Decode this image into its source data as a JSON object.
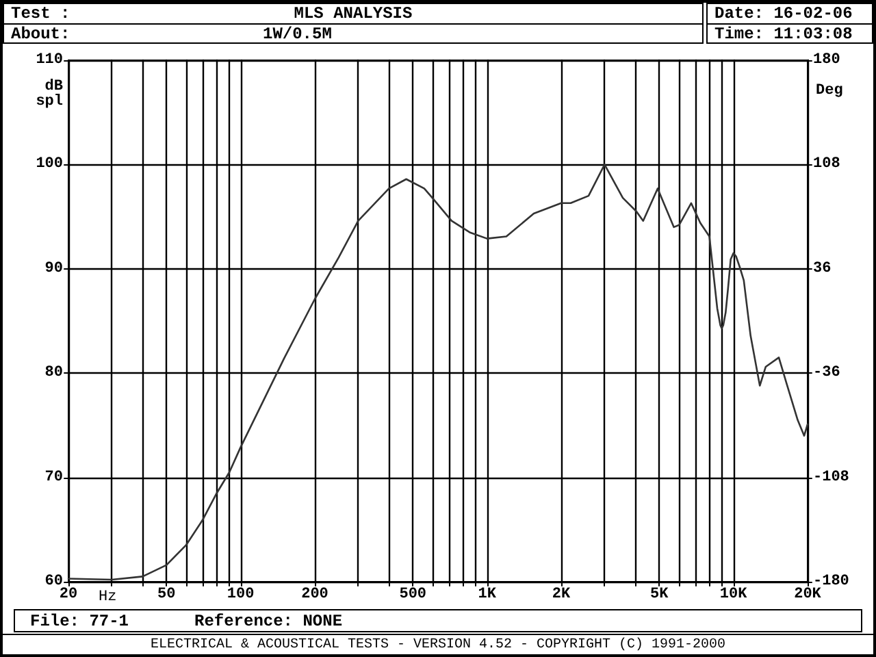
{
  "chart_data": {
    "type": "line",
    "title": "MLS ANALYSIS",
    "annotations": [
      "Test :",
      "About:",
      "1W/0.5M",
      "Date: 16-02-06",
      "Time: 11:03:08",
      "File: 77-1",
      "Reference: NONE",
      "ELECTRICAL & ACOUSTICAL TESTS - VERSION 4.52 - COPYRIGHT (C) 1991-2000"
    ],
    "xlabel": "Hz",
    "ylabel": "dB spl",
    "y2label": "Deg",
    "log": "x",
    "grid": true,
    "marker": "none",
    "line_style": "solid",
    "xlim": [
      20,
      20000
    ],
    "xticks": [
      20,
      {
        "value": 30,
        "label": null
      },
      {
        "value": 40,
        "label": null
      },
      50,
      {
        "value": 60,
        "label": null
      },
      {
        "value": 70,
        "label": null
      },
      {
        "value": 80,
        "label": null
      },
      {
        "value": 90,
        "label": null
      },
      100,
      200,
      {
        "value": 300,
        "label": null
      },
      {
        "value": 400,
        "label": null
      },
      500,
      {
        "value": 600,
        "label": null
      },
      {
        "value": 700,
        "label": null
      },
      {
        "value": 800,
        "label": null
      },
      {
        "value": 900,
        "label": null
      },
      {
        "value": 1000,
        "label": "1K"
      },
      {
        "value": 2000,
        "label": "2K"
      },
      {
        "value": 3000,
        "label": null
      },
      {
        "value": 4000,
        "label": null
      },
      {
        "value": 5000,
        "label": "5K"
      },
      {
        "value": 6000,
        "label": null
      },
      {
        "value": 7000,
        "label": null
      },
      {
        "value": 8000,
        "label": null
      },
      {
        "value": 9000,
        "label": null
      },
      {
        "value": 10000,
        "label": "10K"
      },
      {
        "value": 20000,
        "label": "20K"
      }
    ],
    "ylim": [
      60,
      110
    ],
    "yticks": [
      60,
      70,
      80,
      90,
      100,
      110
    ],
    "y2lim": [
      -180,
      180
    ],
    "y2ticks": [
      -180,
      -108,
      -36,
      36,
      108,
      180
    ],
    "series": [
      {
        "color": "#333333",
        "x": [
          20,
          30,
          40,
          50,
          60,
          70,
          80,
          90,
          100,
          150,
          200,
          250,
          300,
          400,
          470,
          556,
          600,
          718,
          850,
          1000,
          1198,
          1548,
          2000,
          2185,
          2583,
          3000,
          3557,
          4040,
          4303,
          4927,
          5730,
          6020,
          6740,
          7340,
          7990,
          8240,
          8600,
          8850,
          8970,
          9100,
          9300,
          9500,
          9750,
          10000,
          10250,
          10600,
          11020,
          11740,
          12800,
          13520,
          15290,
          16440,
          18240,
          19380,
          20000
        ],
        "values": [
          60.3,
          60.2,
          60.5,
          61.6,
          63.5,
          65.9,
          68.5,
          70.5,
          72.9,
          81.4,
          87.1,
          91.1,
          94.6,
          97.7,
          98.6,
          97.7,
          96.8,
          94.6,
          93.5,
          92.9,
          93.1,
          95.3,
          96.3,
          96.3,
          97.0,
          100.0,
          96.8,
          95.5,
          94.6,
          97.7,
          94.0,
          94.2,
          96.3,
          94.4,
          93.1,
          90.2,
          86.2,
          84.6,
          84.3,
          84.6,
          85.8,
          88.0,
          90.9,
          91.5,
          91.2,
          90.2,
          88.9,
          83.6,
          78.8,
          80.6,
          81.5,
          79.0,
          75.5,
          74.0,
          75.1
        ]
      }
    ]
  }
}
